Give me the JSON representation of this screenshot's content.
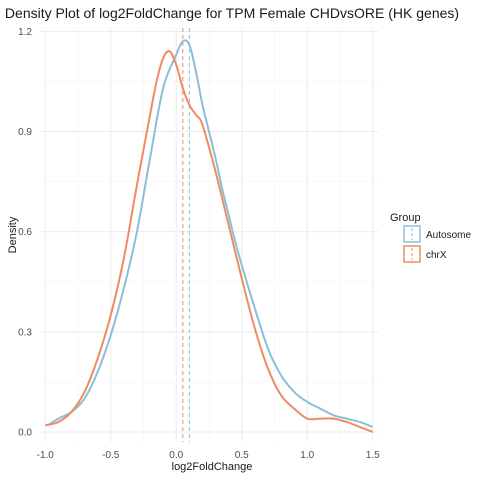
{
  "chart_data": {
    "type": "line",
    "title": "Density Plot of log2FoldChange for TPM Female CHDvsORE (HK genes)",
    "xlabel": "log2FoldChange",
    "ylabel": "Density",
    "xlim": [
      -1.04,
      1.54
    ],
    "ylim": [
      -0.03,
      1.21
    ],
    "x_ticks": [
      -1.0,
      -0.5,
      0.0,
      0.5,
      1.0,
      1.5
    ],
    "x_tick_labels": [
      "-1.0",
      "-0.5",
      "0.0",
      "0.5",
      "1.0",
      "1.5"
    ],
    "y_ticks": [
      0.0,
      0.3,
      0.6,
      0.9,
      1.2
    ],
    "y_tick_labels": [
      "0.0",
      "0.3",
      "0.6",
      "0.9",
      "1.2"
    ],
    "grid": true,
    "legend": {
      "title": "Group",
      "position": "right"
    },
    "series": [
      {
        "name": "Autosome",
        "color": "#8BBFD9",
        "mean": 0.1,
        "x": [
          -0.98,
          -0.9,
          -0.8,
          -0.7,
          -0.6,
          -0.5,
          -0.4,
          -0.3,
          -0.2,
          -0.1,
          0.0,
          0.05,
          0.1,
          0.15,
          0.2,
          0.25,
          0.3,
          0.35,
          0.4,
          0.45,
          0.5,
          0.6,
          0.7,
          0.8,
          0.9,
          1.0,
          1.1,
          1.2,
          1.3,
          1.4,
          1.5
        ],
        "y": [
          0.02,
          0.04,
          0.06,
          0.1,
          0.18,
          0.29,
          0.43,
          0.6,
          0.82,
          1.03,
          1.13,
          1.17,
          1.16,
          1.08,
          0.98,
          0.9,
          0.82,
          0.73,
          0.65,
          0.57,
          0.5,
          0.37,
          0.25,
          0.17,
          0.12,
          0.09,
          0.07,
          0.05,
          0.04,
          0.03,
          0.015
        ]
      },
      {
        "name": "chrX",
        "color": "#F08A62",
        "mean": 0.05,
        "x": [
          -1.0,
          -0.9,
          -0.8,
          -0.7,
          -0.6,
          -0.5,
          -0.4,
          -0.3,
          -0.2,
          -0.15,
          -0.1,
          -0.05,
          0.0,
          0.05,
          0.1,
          0.15,
          0.2,
          0.3,
          0.4,
          0.5,
          0.6,
          0.7,
          0.8,
          0.9,
          1.0,
          1.1,
          1.2,
          1.3,
          1.4,
          1.5
        ],
        "y": [
          0.02,
          0.03,
          0.06,
          0.12,
          0.22,
          0.35,
          0.52,
          0.74,
          0.95,
          1.05,
          1.12,
          1.14,
          1.1,
          1.03,
          0.98,
          0.95,
          0.92,
          0.78,
          0.62,
          0.46,
          0.31,
          0.19,
          0.11,
          0.07,
          0.04,
          0.04,
          0.04,
          0.03,
          0.015,
          0.0
        ]
      }
    ]
  }
}
